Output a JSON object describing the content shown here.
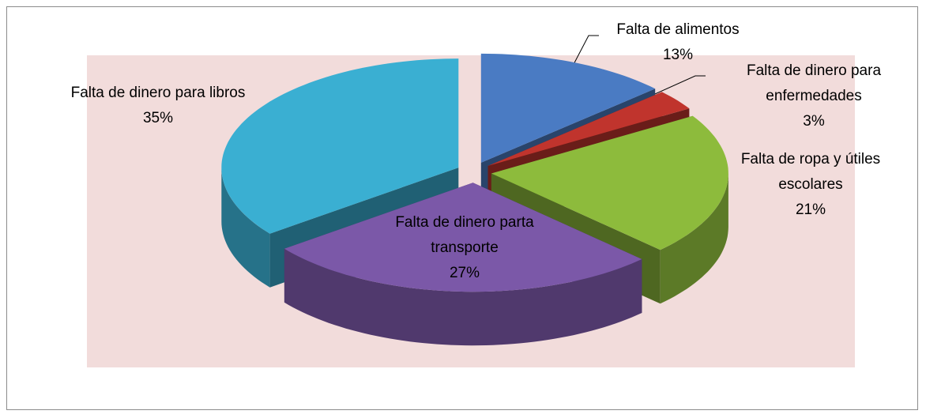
{
  "chart_data": {
    "type": "pie",
    "categories": [
      "Falta de alimentos",
      "Falta de dinero para enfermedades",
      "Falta de ropa y útiles escolares",
      "Falta de dinero parta transporte",
      "Falta de dinero para libros"
    ],
    "values": [
      13,
      3,
      21,
      27,
      35
    ],
    "value_labels": [
      "13%",
      "3%",
      "21%",
      "27%",
      "35%"
    ],
    "colors": [
      "#4a7bc3",
      "#c0342d",
      "#8dbb3c",
      "#7b58a8",
      "#3aafd2"
    ]
  }
}
